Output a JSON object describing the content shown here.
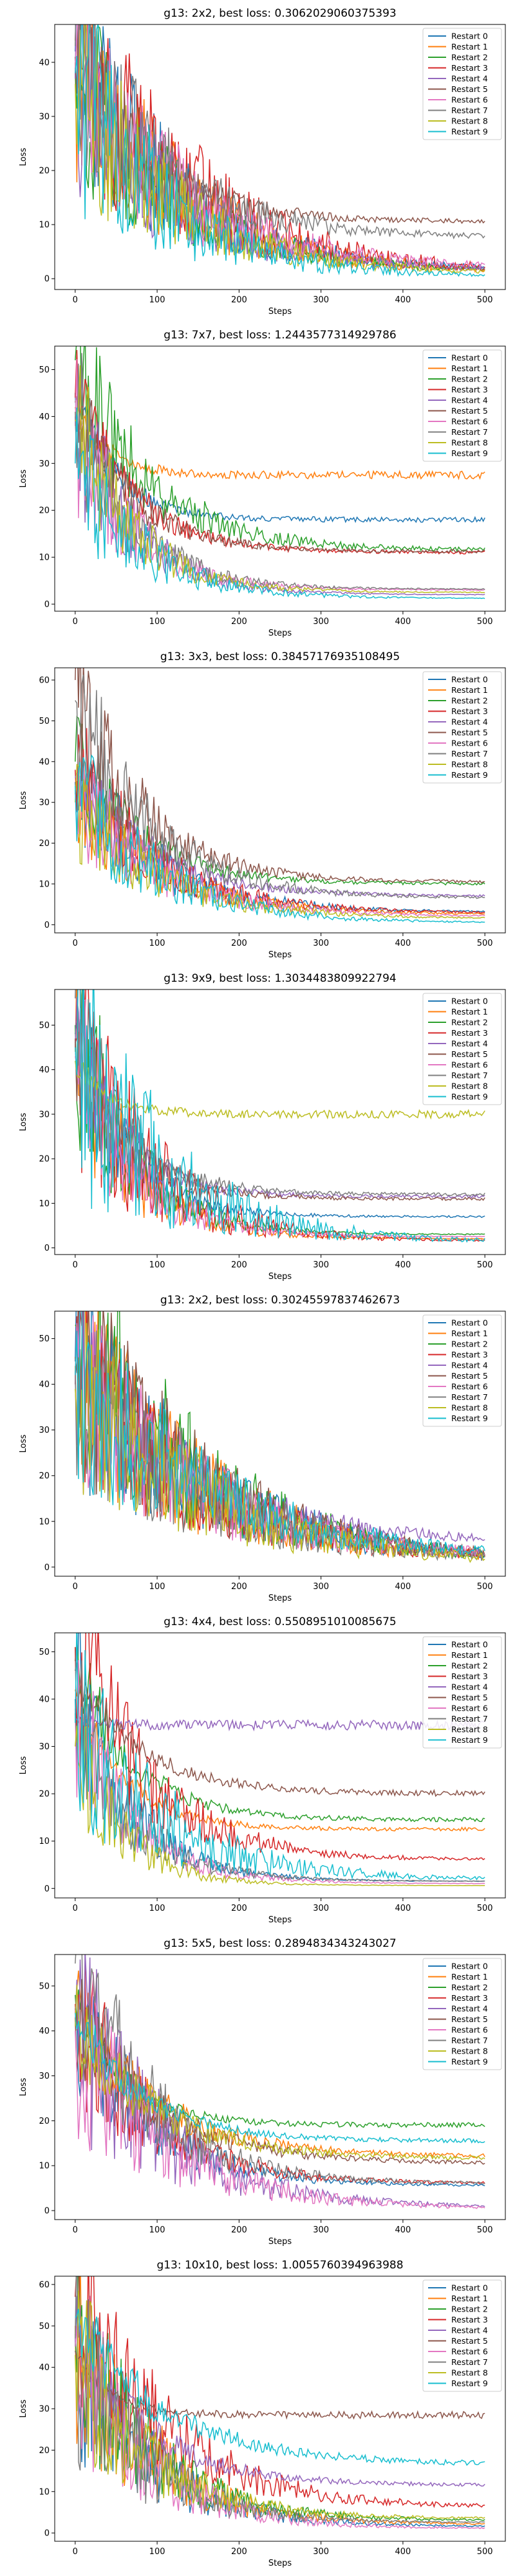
{
  "legend_labels": [
    "Restart 0",
    "Restart 1",
    "Restart 2",
    "Restart 3",
    "Restart 4",
    "Restart 5",
    "Restart 6",
    "Restart 7",
    "Restart 8",
    "Restart 9"
  ],
  "series_colors": [
    "#1f77b4",
    "#ff7f0e",
    "#2ca02c",
    "#d62728",
    "#9467bd",
    "#8c564b",
    "#e377c2",
    "#7f7f7f",
    "#bcbd22",
    "#17becf"
  ],
  "chart_data": [
    {
      "type": "line",
      "title": "g13: 2x2, best loss: 0.3062029060375393",
      "xlabel": "Steps",
      "ylabel": "Loss",
      "xlim": [
        -25,
        525
      ],
      "ylim": [
        -2,
        47
      ],
      "xticks": [
        0,
        100,
        200,
        300,
        400,
        500
      ],
      "yticks": [
        0,
        10,
        20,
        30,
        40
      ],
      "grid": false,
      "legend": "top-right",
      "series": [
        {
          "name": "Restart 0",
          "start": 42,
          "plateau": 1.5,
          "rate": 120,
          "noise": 0.35
        },
        {
          "name": "Restart 1",
          "start": 40,
          "plateau": 0.9,
          "rate": 130,
          "noise": 0.35
        },
        {
          "name": "Restart 2",
          "start": 38,
          "plateau": 1.2,
          "rate": 120,
          "noise": 0.35
        },
        {
          "name": "Restart 3",
          "start": 44,
          "plateau": 1.0,
          "rate": 140,
          "noise": 0.35
        },
        {
          "name": "Restart 4",
          "start": 37,
          "plateau": 1.3,
          "rate": 120,
          "noise": 0.35
        },
        {
          "name": "Restart 5",
          "start": 41,
          "plateau": 10.5,
          "rate": 90,
          "noise": 0.3
        },
        {
          "name": "Restart 6",
          "start": 39,
          "plateau": 1.8,
          "rate": 130,
          "noise": 0.35
        },
        {
          "name": "Restart 7",
          "start": 43,
          "plateau": 7.5,
          "rate": 110,
          "noise": 0.35
        },
        {
          "name": "Restart 8",
          "start": 36,
          "plateau": 0.8,
          "rate": 120,
          "noise": 0.35
        },
        {
          "name": "Restart 9",
          "start": 38,
          "plateau": 0.3,
          "rate": 110,
          "noise": 0.4
        }
      ]
    },
    {
      "type": "line",
      "title": "g13: 7x7, best loss: 1.2443577314929786",
      "xlabel": "Steps",
      "ylabel": "Loss",
      "xlim": [
        -25,
        525
      ],
      "ylim": [
        -1.5,
        55
      ],
      "xticks": [
        0,
        100,
        200,
        300,
        400,
        500
      ],
      "yticks": [
        0,
        10,
        20,
        30,
        40,
        50
      ],
      "grid": false,
      "legend": "top-right",
      "series": [
        {
          "name": "Restart 0",
          "start": 45,
          "plateau": 18.0,
          "rate": 50,
          "noise": 0.15
        },
        {
          "name": "Restart 1",
          "start": 42,
          "plateau": 27.5,
          "rate": 40,
          "noise": 0.12
        },
        {
          "name": "Restart 2",
          "start": 52,
          "plateau": 11.5,
          "rate": 90,
          "noise": 0.25
        },
        {
          "name": "Restart 3",
          "start": 44,
          "plateau": 11.0,
          "rate": 70,
          "noise": 0.2
        },
        {
          "name": "Restart 4",
          "start": 40,
          "plateau": 2.0,
          "rate": 70,
          "noise": 0.3
        },
        {
          "name": "Restart 5",
          "start": 43,
          "plateau": 11.2,
          "rate": 70,
          "noise": 0.2
        },
        {
          "name": "Restart 6",
          "start": 38,
          "plateau": 3.0,
          "rate": 70,
          "noise": 0.3
        },
        {
          "name": "Restart 7",
          "start": 41,
          "plateau": 3.2,
          "rate": 70,
          "noise": 0.3
        },
        {
          "name": "Restart 8",
          "start": 39,
          "plateau": 2.5,
          "rate": 70,
          "noise": 0.3
        },
        {
          "name": "Restart 9",
          "start": 30,
          "plateau": 1.2,
          "rate": 80,
          "noise": 0.35
        }
      ]
    },
    {
      "type": "line",
      "title": "g13: 3x3, best loss: 0.38457176935108495",
      "xlabel": "Steps",
      "ylabel": "Loss",
      "xlim": [
        -25,
        525
      ],
      "ylim": [
        -2,
        63
      ],
      "xticks": [
        0,
        100,
        200,
        300,
        400,
        500
      ],
      "yticks": [
        0,
        10,
        20,
        30,
        40,
        50,
        60
      ],
      "grid": false,
      "legend": "top-right",
      "series": [
        {
          "name": "Restart 0",
          "start": 35,
          "plateau": 3.0,
          "rate": 100,
          "noise": 0.3
        },
        {
          "name": "Restart 1",
          "start": 32,
          "plateau": 2.5,
          "rate": 100,
          "noise": 0.3
        },
        {
          "name": "Restart 2",
          "start": 40,
          "plateau": 10.0,
          "rate": 80,
          "noise": 0.25
        },
        {
          "name": "Restart 3",
          "start": 38,
          "plateau": 2.8,
          "rate": 100,
          "noise": 0.3
        },
        {
          "name": "Restart 4",
          "start": 36,
          "plateau": 7.0,
          "rate": 90,
          "noise": 0.25
        },
        {
          "name": "Restart 5",
          "start": 60,
          "plateau": 10.5,
          "rate": 80,
          "noise": 0.25
        },
        {
          "name": "Restart 6",
          "start": 33,
          "plateau": 2.0,
          "rate": 100,
          "noise": 0.3
        },
        {
          "name": "Restart 7",
          "start": 55,
          "plateau": 6.5,
          "rate": 90,
          "noise": 0.25
        },
        {
          "name": "Restart 8",
          "start": 30,
          "plateau": 1.5,
          "rate": 100,
          "noise": 0.3
        },
        {
          "name": "Restart 9",
          "start": 34,
          "plateau": 0.4,
          "rate": 100,
          "noise": 0.3
        }
      ]
    },
    {
      "type": "line",
      "title": "g13: 9x9, best loss: 1.3034483809922794",
      "xlabel": "Steps",
      "ylabel": "Loss",
      "xlim": [
        -25,
        525
      ],
      "ylim": [
        -1.5,
        58
      ],
      "xticks": [
        0,
        100,
        200,
        300,
        400,
        500
      ],
      "yticks": [
        0,
        10,
        20,
        30,
        40,
        50
      ],
      "grid": false,
      "legend": "top-right",
      "series": [
        {
          "name": "Restart 0",
          "start": 48,
          "plateau": 7.0,
          "rate": 60,
          "noise": 0.3
        },
        {
          "name": "Restart 1",
          "start": 44,
          "plateau": 2.0,
          "rate": 70,
          "noise": 0.35
        },
        {
          "name": "Restart 2",
          "start": 50,
          "plateau": 3.0,
          "rate": 70,
          "noise": 0.35
        },
        {
          "name": "Restart 3",
          "start": 46,
          "plateau": 1.5,
          "rate": 90,
          "noise": 0.4
        },
        {
          "name": "Restart 4",
          "start": 45,
          "plateau": 11.5,
          "rate": 60,
          "noise": 0.3
        },
        {
          "name": "Restart 5",
          "start": 47,
          "plateau": 11.0,
          "rate": 60,
          "noise": 0.3
        },
        {
          "name": "Restart 6",
          "start": 43,
          "plateau": 2.5,
          "rate": 70,
          "noise": 0.35
        },
        {
          "name": "Restart 7",
          "start": 56,
          "plateau": 12.0,
          "rate": 60,
          "noise": 0.3
        },
        {
          "name": "Restart 8",
          "start": 42,
          "plateau": 30.0,
          "rate": 40,
          "noise": 0.1
        },
        {
          "name": "Restart 9",
          "start": 45,
          "plateau": 1.3,
          "rate": 110,
          "noise": 0.45
        }
      ]
    },
    {
      "type": "line",
      "title": "g13: 2x2, best loss: 0.30245597837462673",
      "xlabel": "Steps",
      "ylabel": "Loss",
      "xlim": [
        -25,
        525
      ],
      "ylim": [
        -2,
        56
      ],
      "xticks": [
        0,
        100,
        200,
        300,
        400,
        500
      ],
      "yticks": [
        0,
        10,
        20,
        30,
        40,
        50
      ],
      "grid": false,
      "legend": "top-right",
      "series": [
        {
          "name": "Restart 0",
          "start": 45,
          "plateau": 1.0,
          "rate": 160,
          "noise": 0.35
        },
        {
          "name": "Restart 1",
          "start": 44,
          "plateau": 0.8,
          "rate": 160,
          "noise": 0.35
        },
        {
          "name": "Restart 2",
          "start": 53,
          "plateau": 1.2,
          "rate": 150,
          "noise": 0.35
        },
        {
          "name": "Restart 3",
          "start": 40,
          "plateau": 1.1,
          "rate": 160,
          "noise": 0.35
        },
        {
          "name": "Restart 4",
          "start": 42,
          "plateau": 5.0,
          "rate": 150,
          "noise": 0.3
        },
        {
          "name": "Restart 5",
          "start": 46,
          "plateau": 1.0,
          "rate": 160,
          "noise": 0.35
        },
        {
          "name": "Restart 6",
          "start": 41,
          "plateau": 1.4,
          "rate": 160,
          "noise": 0.35
        },
        {
          "name": "Restart 7",
          "start": 43,
          "plateau": 0.6,
          "rate": 160,
          "noise": 0.35
        },
        {
          "name": "Restart 8",
          "start": 39,
          "plateau": 0.3,
          "rate": 160,
          "noise": 0.35
        },
        {
          "name": "Restart 9",
          "start": 42,
          "plateau": 2.0,
          "rate": 160,
          "noise": 0.35
        }
      ]
    },
    {
      "type": "line",
      "title": "g13: 4x4, best loss: 0.5508951010085675",
      "xlabel": "Steps",
      "ylabel": "Loss",
      "xlim": [
        -25,
        525
      ],
      "ylim": [
        -2,
        54
      ],
      "xticks": [
        0,
        100,
        200,
        300,
        400,
        500
      ],
      "yticks": [
        0,
        10,
        20,
        30,
        40,
        50
      ],
      "grid": false,
      "legend": "top-right",
      "series": [
        {
          "name": "Restart 0",
          "start": 40,
          "plateau": 1.5,
          "rate": 70,
          "noise": 0.3
        },
        {
          "name": "Restart 1",
          "start": 42,
          "plateau": 12.5,
          "rate": 60,
          "noise": 0.15
        },
        {
          "name": "Restart 2",
          "start": 48,
          "plateau": 14.5,
          "rate": 70,
          "noise": 0.15
        },
        {
          "name": "Restart 3",
          "start": 51,
          "plateau": 6.0,
          "rate": 90,
          "noise": 0.3
        },
        {
          "name": "Restart 4",
          "start": 36,
          "plateau": 34.5,
          "rate": 30,
          "noise": 0.05
        },
        {
          "name": "Restart 5",
          "start": 46,
          "plateau": 20.0,
          "rate": 80,
          "noise": 0.1
        },
        {
          "name": "Restart 6",
          "start": 38,
          "plateau": 1.0,
          "rate": 70,
          "noise": 0.3
        },
        {
          "name": "Restart 7",
          "start": 37,
          "plateau": 1.5,
          "rate": 70,
          "noise": 0.3
        },
        {
          "name": "Restart 8",
          "start": 30,
          "plateau": 0.6,
          "rate": 60,
          "noise": 0.3
        },
        {
          "name": "Restart 9",
          "start": 35,
          "plateau": 1.8,
          "rate": 110,
          "noise": 0.4
        }
      ]
    },
    {
      "type": "line",
      "title": "g13: 5x5, best loss: 0.2894834343243027",
      "xlabel": "Steps",
      "ylabel": "Loss",
      "xlim": [
        -25,
        525
      ],
      "ylim": [
        -2,
        57
      ],
      "xticks": [
        0,
        100,
        200,
        300,
        400,
        500
      ],
      "yticks": [
        0,
        10,
        20,
        30,
        40,
        50
      ],
      "grid": false,
      "legend": "top-right",
      "series": [
        {
          "name": "Restart 0",
          "start": 45,
          "plateau": 5.5,
          "rate": 90,
          "noise": 0.3
        },
        {
          "name": "Restart 1",
          "start": 44,
          "plateau": 12.0,
          "rate": 100,
          "noise": 0.2
        },
        {
          "name": "Restart 2",
          "start": 48,
          "plateau": 19.0,
          "rate": 60,
          "noise": 0.1
        },
        {
          "name": "Restart 3",
          "start": 46,
          "plateau": 6.0,
          "rate": 90,
          "noise": 0.3
        },
        {
          "name": "Restart 4",
          "start": 42,
          "plateau": 0.6,
          "rate": 110,
          "noise": 0.35
        },
        {
          "name": "Restart 5",
          "start": 43,
          "plateau": 10.5,
          "rate": 100,
          "noise": 0.2
        },
        {
          "name": "Restart 6",
          "start": 40,
          "plateau": 0.3,
          "rate": 110,
          "noise": 0.35
        },
        {
          "name": "Restart 7",
          "start": 55,
          "plateau": 6.0,
          "rate": 90,
          "noise": 0.3
        },
        {
          "name": "Restart 8",
          "start": 41,
          "plateau": 11.5,
          "rate": 100,
          "noise": 0.2
        },
        {
          "name": "Restart 9",
          "start": 44,
          "plateau": 15.5,
          "rate": 80,
          "noise": 0.12
        }
      ]
    },
    {
      "type": "line",
      "title": "g13: 10x10, best loss: 1.0055760394963988",
      "xlabel": "Steps",
      "ylabel": "Loss",
      "xlim": [
        -25,
        525
      ],
      "ylim": [
        -2,
        62
      ],
      "xticks": [
        0,
        100,
        200,
        300,
        400,
        500
      ],
      "yticks": [
        0,
        10,
        20,
        30,
        40,
        50,
        60
      ],
      "grid": false,
      "legend": "top-right",
      "series": [
        {
          "name": "Restart 0",
          "start": 45,
          "plateau": 1.5,
          "rate": 90,
          "noise": 0.35
        },
        {
          "name": "Restart 1",
          "start": 50,
          "plateau": 2.0,
          "rate": 90,
          "noise": 0.35
        },
        {
          "name": "Restart 2",
          "start": 48,
          "plateau": 3.0,
          "rate": 90,
          "noise": 0.35
        },
        {
          "name": "Restart 3",
          "start": 57,
          "plateau": 6.0,
          "rate": 110,
          "noise": 0.3
        },
        {
          "name": "Restart 4",
          "start": 46,
          "plateau": 11.5,
          "rate": 90,
          "noise": 0.2
        },
        {
          "name": "Restart 5",
          "start": 44,
          "plateau": 28.5,
          "rate": 40,
          "noise": 0.08
        },
        {
          "name": "Restart 6",
          "start": 45,
          "plateau": 1.0,
          "rate": 90,
          "noise": 0.35
        },
        {
          "name": "Restart 7",
          "start": 47,
          "plateau": 2.5,
          "rate": 80,
          "noise": 0.4
        },
        {
          "name": "Restart 8",
          "start": 43,
          "plateau": 3.5,
          "rate": 90,
          "noise": 0.35
        },
        {
          "name": "Restart 9",
          "start": 52,
          "plateau": 16.5,
          "rate": 110,
          "noise": 0.15
        }
      ]
    }
  ]
}
